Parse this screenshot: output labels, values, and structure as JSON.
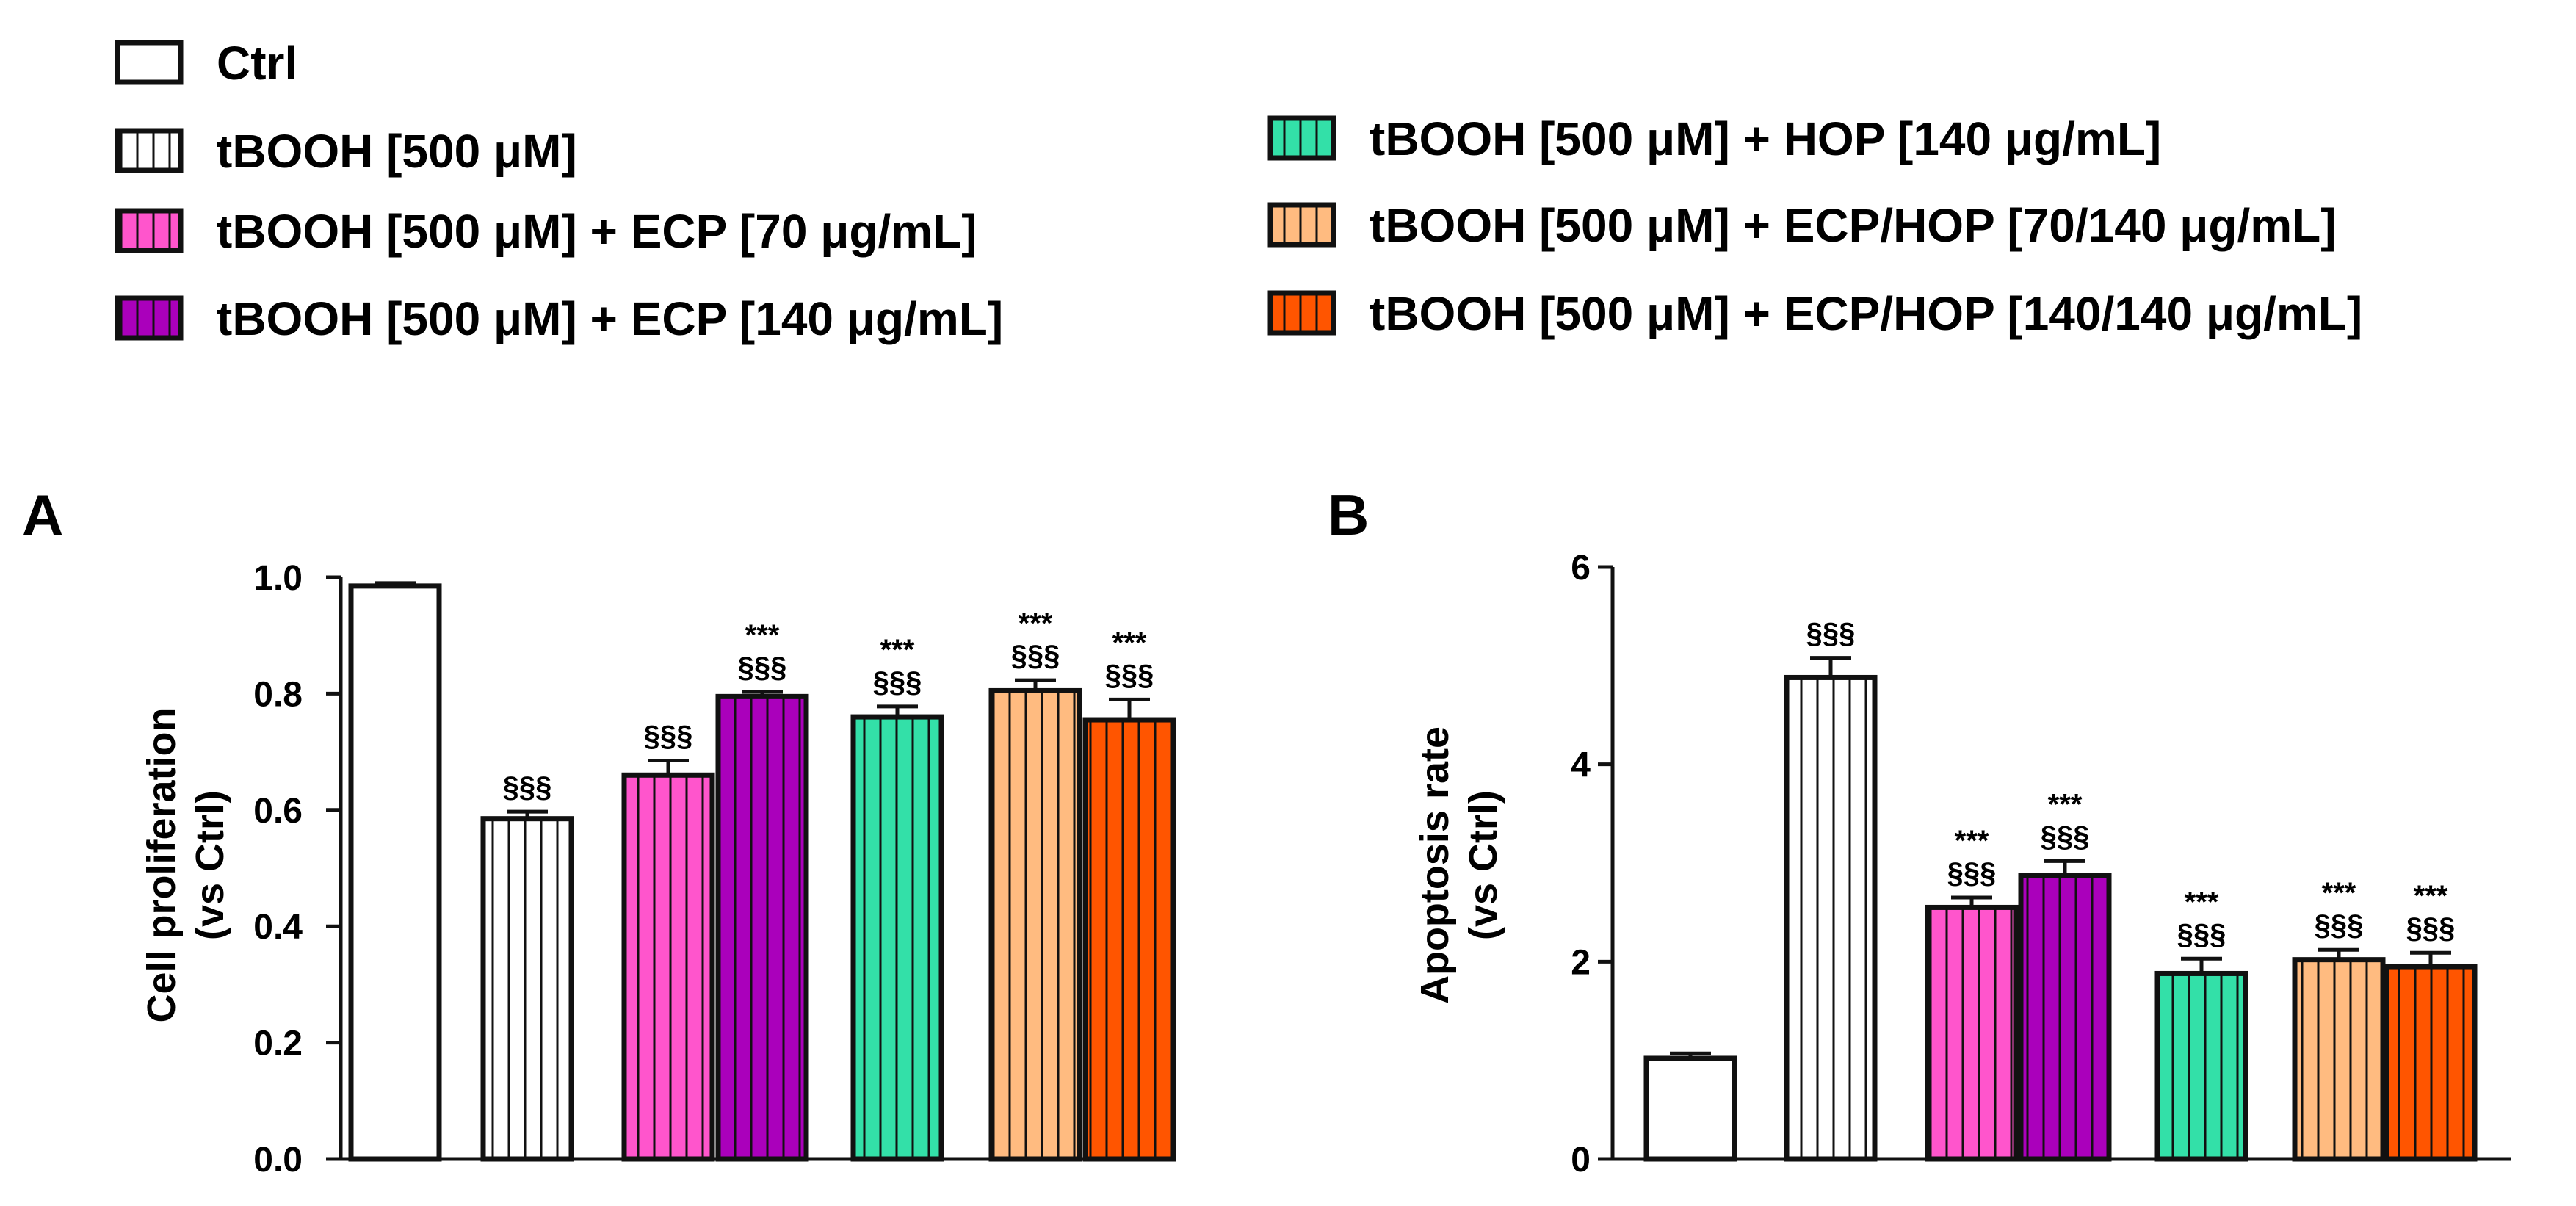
{
  "groups": [
    {
      "key": "ctrl",
      "label": "Ctrl",
      "color": "#ffffff",
      "striped": false
    },
    {
      "key": "tbooh",
      "label": "tBOOH [500 μM]",
      "color": "#ffffff",
      "striped": true
    },
    {
      "key": "ecp70",
      "label": "tBOOH [500 μM] + ECP [70 μg/mL]",
      "color": "#ff55cc",
      "striped": true
    },
    {
      "key": "ecp140",
      "label": "tBOOH [500 μM] + ECP [140 μg/mL]",
      "color": "#aa00bb",
      "striped": true
    },
    {
      "key": "hop140",
      "label": "tBOOH [500 μM] + HOP [140 μg/mL]",
      "color": "#33e0a8",
      "striped": true
    },
    {
      "key": "ecphop70",
      "label": "tBOOH [500 μM] + ECP/HOP [70/140 μg/mL]",
      "color": "#ffbb80",
      "striped": true
    },
    {
      "key": "ecphop140",
      "label": "tBOOH [500 μM] + ECP/HOP [140/140 μg/mL]",
      "color": "#ff5500",
      "striped": true
    }
  ],
  "chart_data": [
    {
      "panel": "A",
      "type": "bar",
      "ylabel": "Cell proliferation\n(vs Ctrl)",
      "ylim": [
        0,
        1.0
      ],
      "yticks": [
        0.0,
        0.2,
        0.4,
        0.6,
        0.8,
        1.0
      ],
      "ytick_labels": [
        "0.0",
        "0.2",
        "0.4",
        "0.6",
        "0.8",
        "1.0"
      ],
      "categories": [
        "Ctrl",
        "tBOOH [500 μM]",
        "tBOOH [500 μM] + ECP [70 μg/mL]",
        "tBOOH [500 μM] + ECP [140 μg/mL]",
        "tBOOH [500 μM] + HOP [140 μg/mL]",
        "tBOOH [500 μM] + ECP/HOP [70/140 μg/mL]",
        "tBOOH [500 μM] + ECP/HOP [140/140 μg/mL]"
      ],
      "values": [
        0.985,
        0.585,
        0.66,
        0.795,
        0.76,
        0.805,
        0.755
      ],
      "errors": [
        0.005,
        0.012,
        0.025,
        0.008,
        0.018,
        0.018,
        0.035
      ],
      "annotations": [
        [],
        [
          "§§§"
        ],
        [
          "§§§"
        ],
        [
          "***",
          "§§§"
        ],
        [
          "***",
          "§§§"
        ],
        [
          "***",
          "§§§"
        ],
        [
          "***",
          "§§§"
        ]
      ]
    },
    {
      "panel": "B",
      "type": "bar",
      "ylabel": "Apoptosis rate\n(vs Ctrl)",
      "ylim": [
        0,
        6
      ],
      "yticks": [
        0,
        2,
        4,
        6
      ],
      "ytick_labels": [
        "0",
        "2",
        "4",
        "6"
      ],
      "categories": [
        "Ctrl",
        "tBOOH [500 μM]",
        "tBOOH [500 μM] + ECP [70 μg/mL]",
        "tBOOH [500 μM] + ECP [140 μg/mL]",
        "tBOOH [500 μM] + HOP [140 μg/mL]",
        "tBOOH [500 μM] + ECP/HOP [70/140 μg/mL]",
        "tBOOH [500 μM] + ECP/HOP [140/140 μg/mL]"
      ],
      "values": [
        1.02,
        4.88,
        2.55,
        2.87,
        1.88,
        2.02,
        1.95
      ],
      "errors": [
        0.05,
        0.2,
        0.1,
        0.15,
        0.15,
        0.1,
        0.14
      ],
      "annotations": [
        [],
        [
          "§§§"
        ],
        [
          "***",
          "§§§"
        ],
        [
          "***",
          "§§§"
        ],
        [
          "***",
          "§§§"
        ],
        [
          "***",
          "§§§"
        ],
        [
          "***",
          "§§§"
        ]
      ]
    }
  ]
}
